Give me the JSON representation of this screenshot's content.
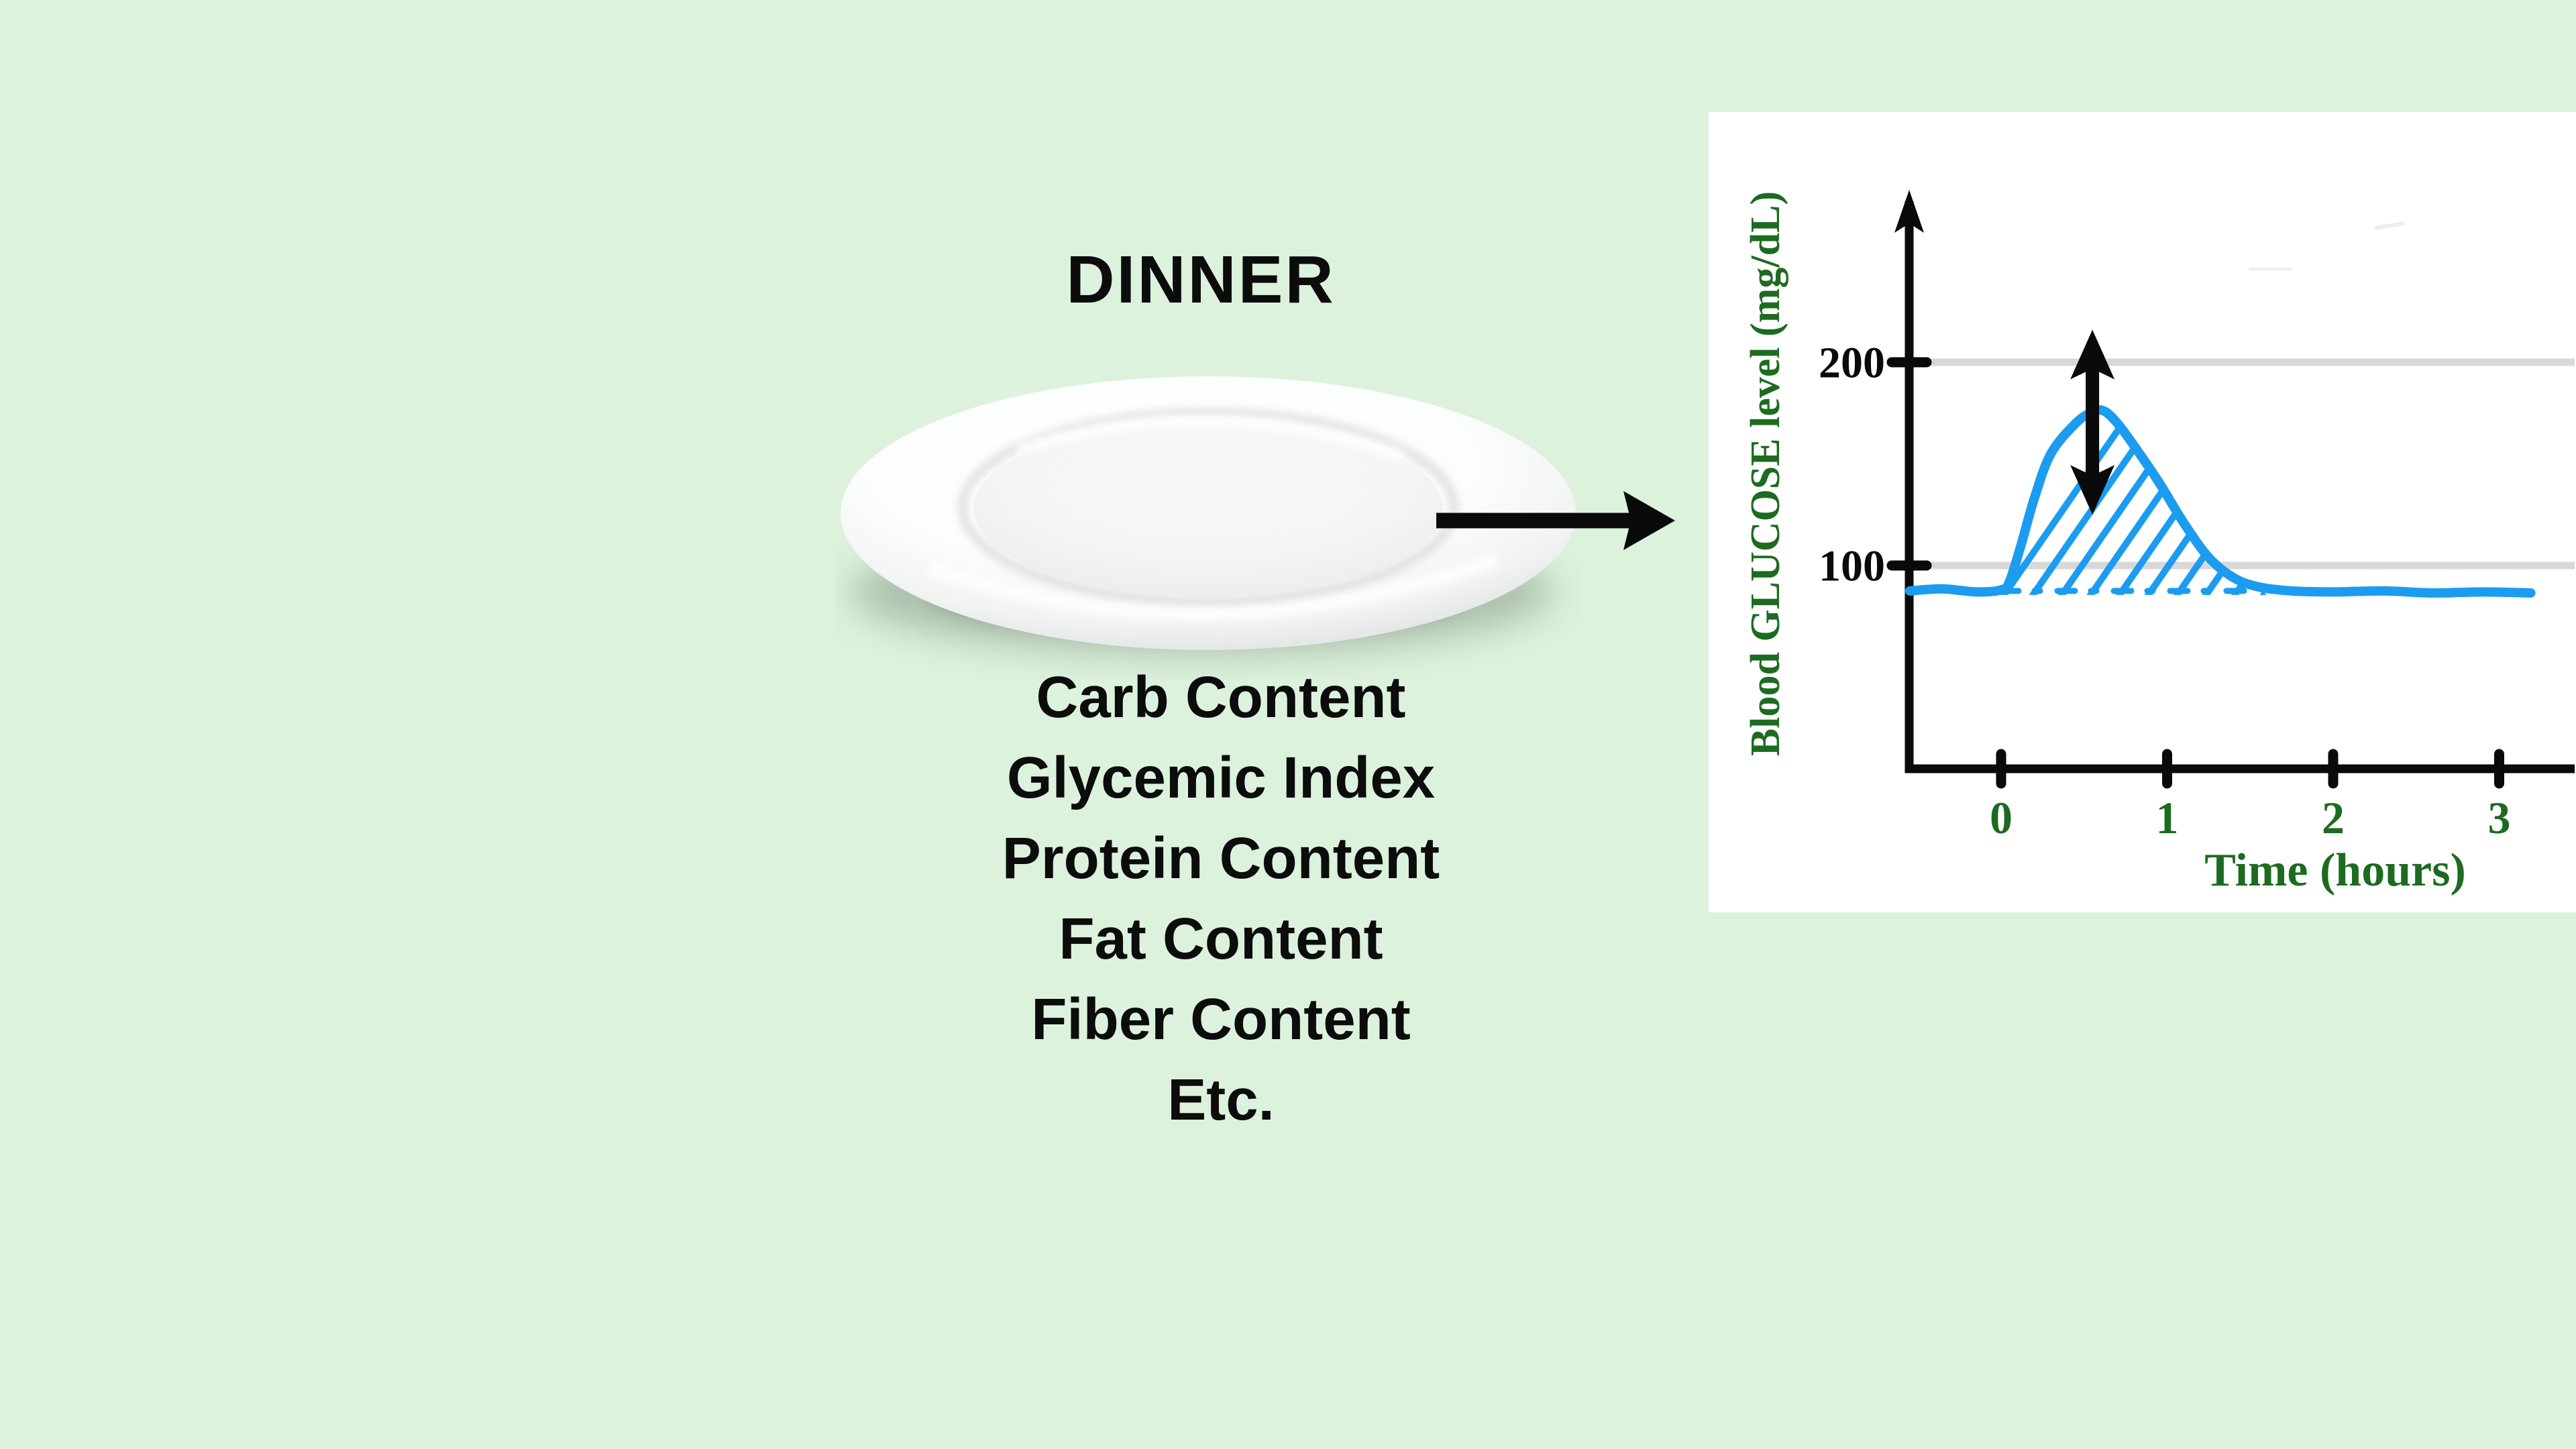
{
  "page": {
    "background_color": "#dcf2dd",
    "panel_color": "#ffffff"
  },
  "left": {
    "title": "DINNER",
    "factors": [
      "Carb Content",
      "Glycemic Index",
      "Protein Content",
      "Fat Content",
      "Fiber Content",
      "Etc."
    ],
    "plate_icon": "empty-white-dinner-plate",
    "arrow_icon": "right-arrow"
  },
  "chart_data": {
    "type": "line",
    "title": "",
    "xlabel": "Time (hours)",
    "ylabel": "Blood GLUCOSE level (mg/dL)",
    "x_ticks": [
      0,
      1,
      2,
      3
    ],
    "y_ticks": [
      100,
      200
    ],
    "xlim": [
      -0.55,
      3.46
    ],
    "ylim": [
      0,
      285
    ],
    "grid": "horizontal gridlines at 100 and 200",
    "legend_position": "none",
    "colors": {
      "line": "#1b9cf0",
      "axis": "#0a0a0a",
      "labels": "#1d6b20",
      "tick_numbers": "#0a0a0a",
      "gridline": "#d8d8d8"
    },
    "baseline_mg_dl": 88,
    "peak_mg_dl": 176,
    "peak_time_h": 0.62,
    "series": [
      {
        "name": "blood-glucose-after-meal",
        "points_t_h_vs_mg_dl": [
          [
            -0.55,
            87.5
          ],
          [
            -0.35,
            88.5
          ],
          [
            -0.15,
            87.0
          ],
          [
            0.0,
            88.0
          ],
          [
            0.05,
            92
          ],
          [
            0.12,
            110
          ],
          [
            0.2,
            133
          ],
          [
            0.3,
            155
          ],
          [
            0.45,
            170
          ],
          [
            0.55,
            175.5
          ],
          [
            0.62,
            176
          ],
          [
            0.7,
            170
          ],
          [
            0.8,
            159
          ],
          [
            0.95,
            141
          ],
          [
            1.1,
            121
          ],
          [
            1.25,
            104
          ],
          [
            1.4,
            94
          ],
          [
            1.55,
            89.5
          ],
          [
            1.75,
            87.5
          ],
          [
            2.0,
            87
          ],
          [
            2.3,
            87.5
          ],
          [
            2.6,
            86.5
          ],
          [
            2.9,
            87
          ],
          [
            3.19,
            86.5
          ]
        ]
      }
    ],
    "baseline_dashed_segment": {
      "t_start": 0.0,
      "t_end": 1.52,
      "mg_dl": 87.5
    },
    "hatched_area": "diagonal hatching between curve and dashed baseline from t=0.02 to t=1.58",
    "annotations": [
      {
        "name": "spike-height-arrow",
        "type": "double-headed-vertical-arrow",
        "t": 0.55,
        "from_mg_dl": 125,
        "to_mg_dl": 216
      }
    ]
  }
}
